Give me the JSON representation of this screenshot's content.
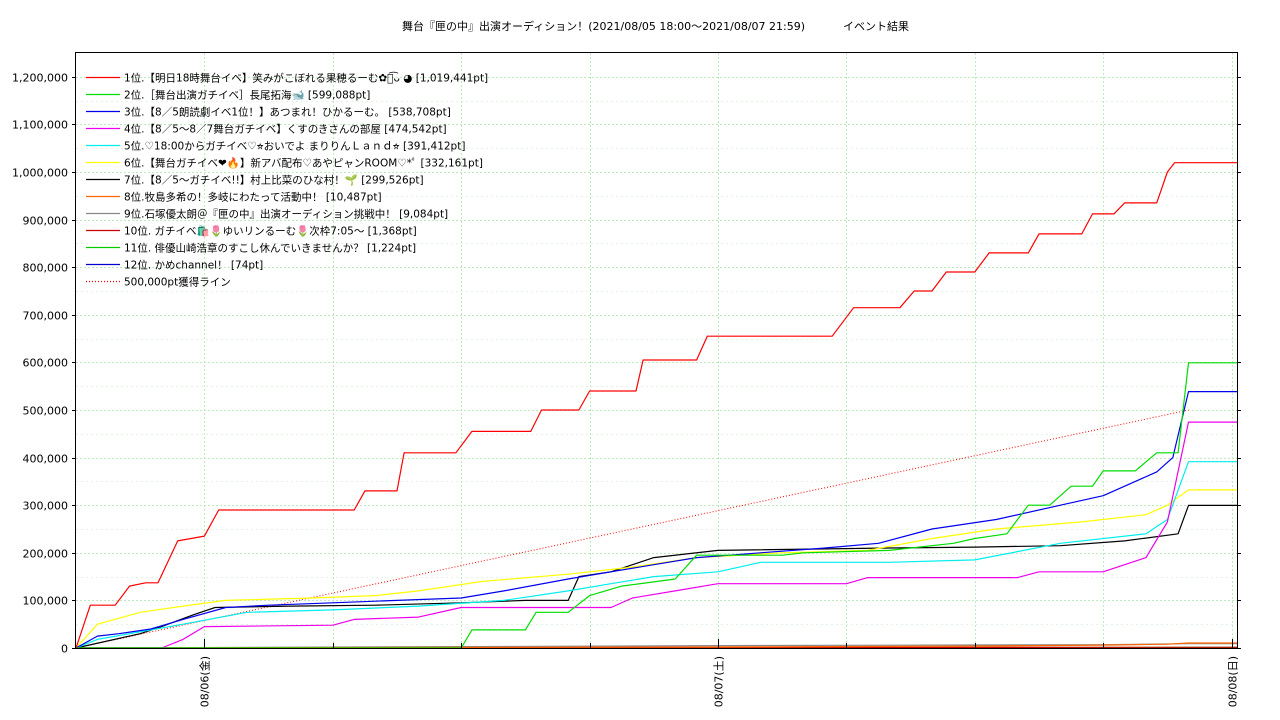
{
  "chart_data": {
    "type": "line",
    "title": "舞台『匣の中』出演オーディション！(2021/08/05 18:00〜2021/08/07 21:59)",
    "title_suffix": "イベント結果",
    "x_range": [
      "2021-08-05 18:00",
      "2021-08-08 00:15"
    ],
    "ylim": [
      0,
      1250000
    ],
    "y_ticks": [
      0,
      100000,
      200000,
      300000,
      400000,
      500000,
      600000,
      700000,
      800000,
      900000,
      1000000,
      1100000,
      1200000
    ],
    "y_tick_labels": [
      "0",
      "100,000",
      "200,000",
      "300,000",
      "400,000",
      "500,000",
      "600,000",
      "700,000",
      "800,000",
      "900,000",
      "1,000,000",
      "1,100,000",
      "1,200,000"
    ],
    "x_tick_positions": [
      "2021-08-06 00:00",
      "2021-08-07 00:00",
      "2021-08-08 00:00"
    ],
    "x_tick_labels": [
      "08/06(金)",
      "08/07(土)",
      "08/08(日)"
    ],
    "grid": true,
    "legend_position": "top-left",
    "series": [
      {
        "name": "1位.【明日18時舞台イベ】笑みがこぼれる果穂るーむ✿ﾉ͡ᴗ ◕ [1,019,441pt]",
        "color": "#ff0000",
        "x": [
          "2021-08-05 18:00",
          "2021-08-05 18:40",
          "2021-08-05 19:50",
          "2021-08-05 20:30",
          "2021-08-05 21:15",
          "2021-08-05 21:50",
          "2021-08-05 22:45",
          "2021-08-06 00:00",
          "2021-08-06 00:40",
          "2021-08-06 07:00",
          "2021-08-06 07:30",
          "2021-08-06 09:00",
          "2021-08-06 09:20",
          "2021-08-06 11:45",
          "2021-08-06 12:30",
          "2021-08-06 15:15",
          "2021-08-06 15:45",
          "2021-08-06 17:30",
          "2021-08-06 18:00",
          "2021-08-06 20:10",
          "2021-08-06 20:30",
          "2021-08-06 23:00",
          "2021-08-06 23:30",
          "2021-08-07 05:20",
          "2021-08-07 06:20",
          "2021-08-07 08:30",
          "2021-08-07 09:10",
          "2021-08-07 10:00",
          "2021-08-07 10:40",
          "2021-08-07 12:00",
          "2021-08-07 12:40",
          "2021-08-07 14:30",
          "2021-08-07 15:00",
          "2021-08-07 17:00",
          "2021-08-07 17:30",
          "2021-08-07 18:30",
          "2021-08-07 19:00",
          "2021-08-07 20:30",
          "2021-08-07 21:00",
          "2021-08-07 21:20",
          "2021-08-07 21:59",
          "2021-08-08 00:15"
        ],
        "y": [
          0,
          90000,
          90000,
          130000,
          137000,
          137000,
          225000,
          235000,
          290000,
          290000,
          330000,
          330000,
          410000,
          410000,
          455000,
          455000,
          500000,
          500000,
          540000,
          540000,
          605000,
          605000,
          655000,
          655000,
          715000,
          715000,
          750000,
          750000,
          790000,
          790000,
          830000,
          830000,
          870000,
          870000,
          912000,
          912000,
          935000,
          935000,
          1000000,
          1019441,
          1019441,
          1019441
        ]
      },
      {
        "name": "2位.［舞台出演ガチイベ］長尾拓海🐋 [599,088pt]",
        "color": "#00dd00",
        "x": [
          "2021-08-05 18:00",
          "2021-08-06 12:00",
          "2021-08-06 12:30",
          "2021-08-06 15:00",
          "2021-08-06 15:30",
          "2021-08-06 17:00",
          "2021-08-06 18:00",
          "2021-08-06 19:30",
          "2021-08-06 22:00",
          "2021-08-06 23:00",
          "2021-08-07 03:00",
          "2021-08-07 04:00",
          "2021-08-07 08:00",
          "2021-08-07 11:00",
          "2021-08-07 12:00",
          "2021-08-07 13:30",
          "2021-08-07 14:30",
          "2021-08-07 15:30",
          "2021-08-07 16:30",
          "2021-08-07 17:30",
          "2021-08-07 18:00",
          "2021-08-07 19:30",
          "2021-08-07 20:30",
          "2021-08-07 21:30",
          "2021-08-07 21:59",
          "2021-08-08 00:15"
        ],
        "y": [
          0,
          0,
          38000,
          38000,
          75000,
          75000,
          110000,
          130000,
          145000,
          195000,
          195000,
          200000,
          205000,
          220000,
          230000,
          240000,
          300000,
          300000,
          340000,
          340000,
          372000,
          372000,
          410000,
          410000,
          599088,
          599088
        ]
      },
      {
        "name": "3位.【8／5朗読劇イベ1位！】あつまれ！ひかるーむ。 [538,708pt]",
        "color": "#0000ee",
        "x": [
          "2021-08-05 18:00",
          "2021-08-05 19:00",
          "2021-08-05 20:00",
          "2021-08-05 21:30",
          "2021-08-05 23:00",
          "2021-08-06 01:00",
          "2021-08-06 03:00",
          "2021-08-06 06:00",
          "2021-08-06 09:00",
          "2021-08-06 12:00",
          "2021-08-06 14:00",
          "2021-08-06 17:00",
          "2021-08-06 19:00",
          "2021-08-06 21:00",
          "2021-08-06 23:00",
          "2021-08-07 02:00",
          "2021-08-07 05:00",
          "2021-08-07 07:30",
          "2021-08-07 10:00",
          "2021-08-07 13:00",
          "2021-08-07 16:00",
          "2021-08-07 18:00",
          "2021-08-07 19:30",
          "2021-08-07 20:30",
          "2021-08-07 21:15",
          "2021-08-07 21:59",
          "2021-08-08 00:15"
        ],
        "y": [
          0,
          25000,
          30000,
          40000,
          60000,
          85000,
          90000,
          95000,
          100000,
          105000,
          120000,
          145000,
          160000,
          175000,
          190000,
          200000,
          210000,
          220000,
          250000,
          270000,
          300000,
          320000,
          350000,
          370000,
          400000,
          538708,
          538708
        ]
      },
      {
        "name": "4位.【8／5〜8／7舞台ガチイベ】くすのきさんの部屋 [474,542pt]",
        "color": "#ee00ee",
        "x": [
          "2021-08-05 18:00",
          "2021-08-05 22:00",
          "2021-08-05 23:00",
          "2021-08-06 00:00",
          "2021-08-06 06:00",
          "2021-08-06 07:00",
          "2021-08-06 10:00",
          "2021-08-06 12:00",
          "2021-08-06 19:00",
          "2021-08-06 20:00",
          "2021-08-06 22:00",
          "2021-08-07 00:00",
          "2021-08-07 06:00",
          "2021-08-07 07:00",
          "2021-08-07 14:00",
          "2021-08-07 15:00",
          "2021-08-07 18:00",
          "2021-08-07 19:00",
          "2021-08-07 20:00",
          "2021-08-07 21:00",
          "2021-08-07 21:59",
          "2021-08-08 00:15"
        ],
        "y": [
          0,
          0,
          18000,
          45000,
          48000,
          60000,
          65000,
          85000,
          85000,
          105000,
          120000,
          135000,
          135000,
          148000,
          148000,
          160000,
          160000,
          175000,
          190000,
          265000,
          474542,
          474542
        ]
      },
      {
        "name": "5位.♡18:00からガチイベ♡⭐︎おいでよ まりりんＬａｎｄ⭐︎ [391,412pt]",
        "color": "#00eeee",
        "x": [
          "2021-08-05 18:00",
          "2021-08-05 19:00",
          "2021-08-05 23:00",
          "2021-08-06 02:00",
          "2021-08-06 06:00",
          "2021-08-06 10:00",
          "2021-08-06 14:00",
          "2021-08-06 17:00",
          "2021-08-06 19:00",
          "2021-08-06 21:00",
          "2021-08-07 00:00",
          "2021-08-07 02:00",
          "2021-08-07 08:00",
          "2021-08-07 12:00",
          "2021-08-07 16:00",
          "2021-08-07 20:00",
          "2021-08-07 21:00",
          "2021-08-07 21:59",
          "2021-08-08 00:15"
        ],
        "y": [
          0,
          18000,
          50000,
          75000,
          80000,
          88000,
          100000,
          120000,
          135000,
          150000,
          160000,
          180000,
          180000,
          185000,
          220000,
          240000,
          270000,
          391412,
          391412
        ]
      },
      {
        "name": "6位.【舞台ガチイベ❤︎🔥】新アバ配布♡あやピャンROOM♡*ﾟ [332,161pt]",
        "color": "#ffff00",
        "x": [
          "2021-08-05 18:00",
          "2021-08-05 19:00",
          "2021-08-05 21:00",
          "2021-08-05 23:00",
          "2021-08-06 01:00",
          "2021-08-06 05:00",
          "2021-08-06 08:00",
          "2021-08-06 10:00",
          "2021-08-06 13:00",
          "2021-08-06 17:00",
          "2021-08-06 20:00",
          "2021-08-06 23:00",
          "2021-08-07 03:00",
          "2021-08-07 07:00",
          "2021-08-07 10:00",
          "2021-08-07 13:00",
          "2021-08-07 17:00",
          "2021-08-07 20:00",
          "2021-08-07 21:00",
          "2021-08-07 21:59",
          "2021-08-08 00:15"
        ],
        "y": [
          0,
          50000,
          75000,
          88000,
          100000,
          105000,
          110000,
          120000,
          140000,
          155000,
          170000,
          190000,
          200000,
          205000,
          230000,
          250000,
          265000,
          280000,
          300000,
          332161,
          332161
        ]
      },
      {
        "name": "7位.【8／5〜ガチイベ!!】村上比菜のひな村！🌱 [299,526pt]",
        "color": "#000000",
        "x": [
          "2021-08-05 18:00",
          "2021-08-05 21:00",
          "2021-08-05 22:00",
          "2021-08-05 23:30",
          "2021-08-06 00:30",
          "2021-08-06 04:00",
          "2021-08-06 08:00",
          "2021-08-06 12:00",
          "2021-08-06 15:00",
          "2021-08-06 17:00",
          "2021-08-06 17:30",
          "2021-08-06 19:00",
          "2021-08-06 21:00",
          "2021-08-07 00:00",
          "2021-08-07 08:00",
          "2021-08-07 12:00",
          "2021-08-07 16:00",
          "2021-08-07 19:00",
          "2021-08-07 21:30",
          "2021-08-07 21:59",
          "2021-08-08 00:15"
        ],
        "y": [
          0,
          30000,
          45000,
          70000,
          85000,
          88000,
          90000,
          95000,
          100000,
          100000,
          150000,
          160000,
          190000,
          205000,
          210000,
          212000,
          215000,
          225000,
          240000,
          299526,
          299526
        ]
      },
      {
        "name": "8位.牧島多希の！多岐にわたって活動中！ [10,487pt]",
        "color": "#ff6600",
        "x": [
          "2021-08-05 18:00",
          "2021-08-07 00:00",
          "2021-08-07 12:00",
          "2021-08-07 18:00",
          "2021-08-07 21:00",
          "2021-08-07 21:59",
          "2021-08-08 00:15"
        ],
        "y": [
          0,
          2000,
          4000,
          6000,
          8000,
          10487,
          10487
        ]
      },
      {
        "name": "9位.石塚優太朗＠『匣の中』出演オーディション挑戦中！ [9,084pt]",
        "color": "#888888",
        "x": [
          "2021-08-05 18:00",
          "2021-08-06 12:00",
          "2021-08-07 00:00",
          "2021-08-07 18:00",
          "2021-08-07 21:59",
          "2021-08-08 00:15"
        ],
        "y": [
          0,
          3000,
          5000,
          7000,
          9084,
          9084
        ]
      },
      {
        "name": "10位. ガチイベ🛍️🌷ゆいリンるーむ🌷次枠7:05〜 [1,368pt]",
        "color": "#cc0000",
        "x": [
          "2021-08-05 18:00",
          "2021-08-06 12:00",
          "2021-08-07 21:59",
          "2021-08-08 00:15"
        ],
        "y": [
          0,
          800,
          1368,
          1368
        ]
      },
      {
        "name": "11位. 俳優山崎浩章のすこし休んでいきませんか？ [1,224pt]",
        "color": "#00cc00",
        "x": [
          "2021-08-05 18:00",
          "2021-08-07 21:59",
          "2021-08-08 00:15"
        ],
        "y": [
          0,
          1224,
          1224
        ]
      },
      {
        "name": "12位. かめchannel！ [74pt]",
        "color": "#0000cc",
        "x": [
          "2021-08-05 18:00",
          "2021-08-07 21:59",
          "2021-08-08 00:15"
        ],
        "y": [
          0,
          74,
          74
        ]
      }
    ],
    "reference_line": {
      "name": "500,000pt獲得ライン",
      "color": "#ff0000",
      "x": [
        "2021-08-05 18:00",
        "2021-08-07 21:59"
      ],
      "y": [
        0,
        500000
      ]
    }
  }
}
